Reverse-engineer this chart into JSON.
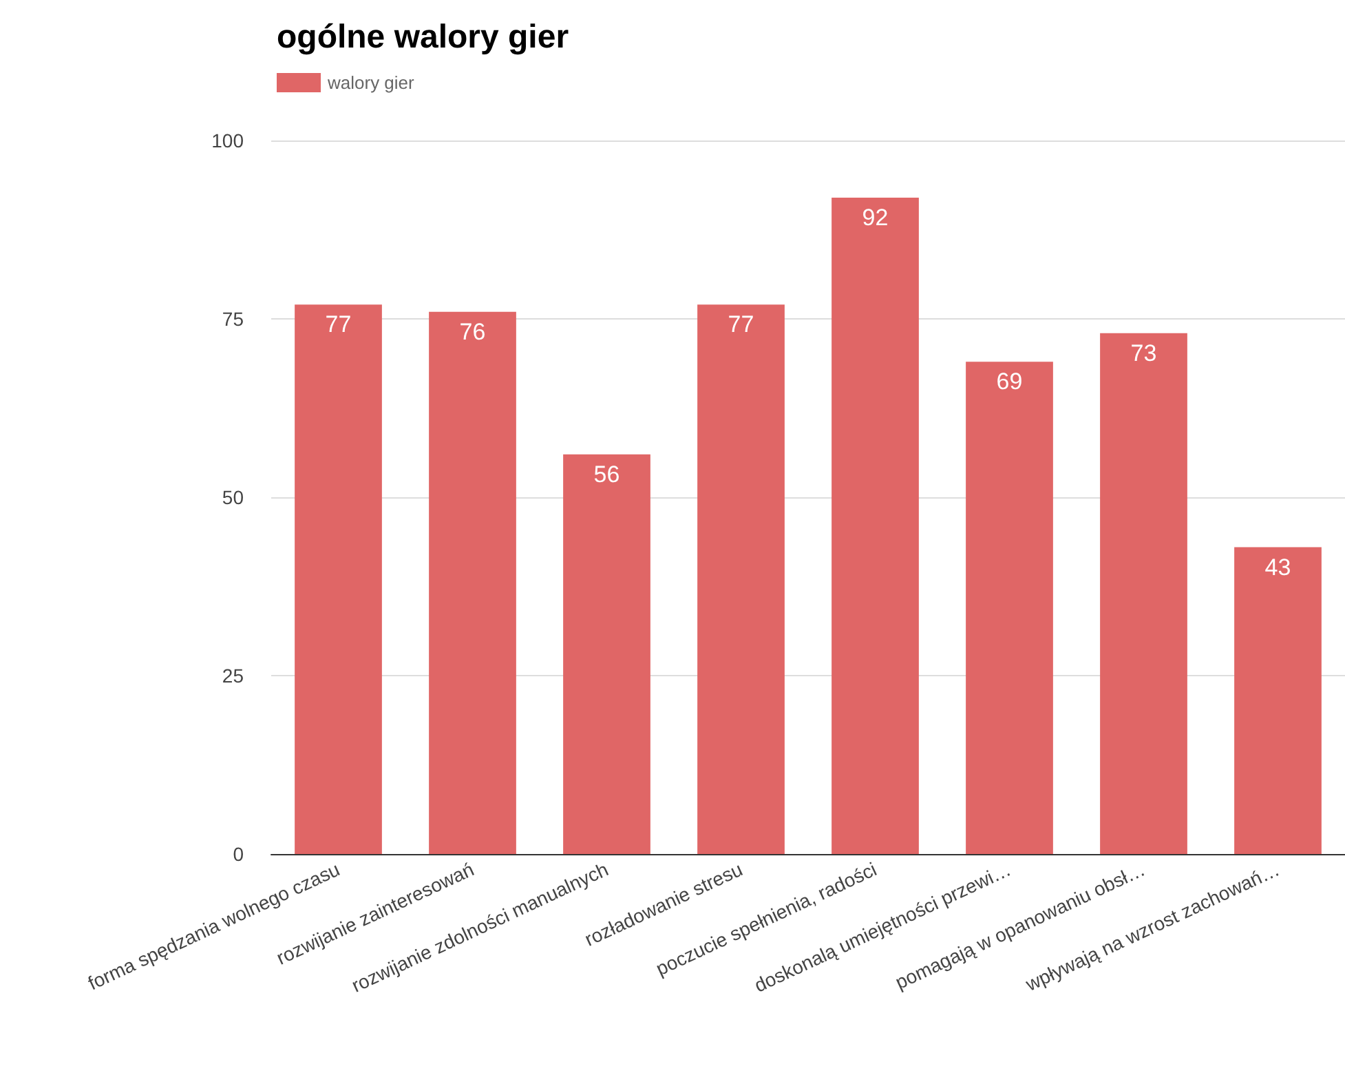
{
  "chart_data": {
    "type": "bar",
    "title": "ogólne walory gier",
    "categories": [
      "forma spędzania wolnego czasu",
      "rozwijanie zainteresowań",
      "rozwijanie zdolności manualnych",
      "rozładowanie stresu",
      "poczucie spełnienia, radości",
      "doskonalą umiejętności przewi…",
      "pomagają w opanowaniu obsł…",
      "wpływają na wzrost zachowań…"
    ],
    "series": [
      {
        "name": "walory gier",
        "color": "#e06666",
        "values": [
          77,
          76,
          56,
          77,
          92,
          69,
          73,
          43
        ]
      }
    ],
    "ylim": [
      0,
      100
    ],
    "yticks": [
      0,
      25,
      50,
      75,
      100
    ],
    "grid": "y",
    "legend": "top left",
    "data_labels": true
  }
}
